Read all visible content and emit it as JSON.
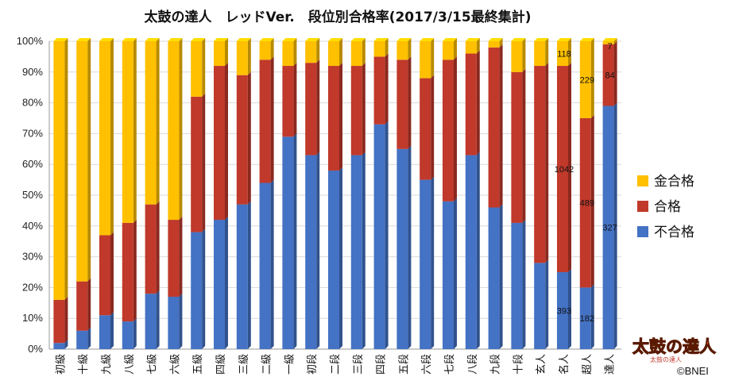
{
  "colors": {
    "gold": "#FFC000",
    "pass": "#C0392B",
    "fail": "#4472C4"
  },
  "chart_data": {
    "type": "bar",
    "stacked": true,
    "title": "太鼓の達人　レッドVer.　段位別合格率(2017/3/15最終集計)",
    "categories": [
      "初級",
      "十級",
      "九級",
      "八級",
      "七級",
      "六級",
      "五級",
      "四級",
      "三級",
      "二級",
      "一級",
      "初段",
      "二段",
      "三段",
      "四段",
      "五段",
      "六段",
      "七段",
      "八段",
      "九段",
      "十段",
      "玄人",
      "名人",
      "超人",
      "達人"
    ],
    "series": [
      {
        "name": "不合格",
        "color": "#4472C4",
        "values": [
          2,
          6,
          11,
          9,
          18,
          17,
          38,
          42,
          47,
          54,
          69,
          63,
          58,
          63,
          73,
          65,
          55,
          48,
          63,
          46,
          41,
          28,
          25,
          20,
          79
        ]
      },
      {
        "name": "合格",
        "color": "#C0392B",
        "values": [
          14,
          16,
          26,
          32,
          29,
          25,
          44,
          50,
          42,
          40,
          23,
          30,
          34,
          29,
          22,
          29,
          33,
          46,
          33,
          52,
          49,
          64,
          67,
          55,
          20
        ]
      },
      {
        "name": "金合格",
        "color": "#FFC000",
        "values": [
          84,
          78,
          63,
          59,
          53,
          58,
          18,
          8,
          11,
          6,
          8,
          7,
          8,
          8,
          5,
          6,
          12,
          6,
          4,
          2,
          10,
          8,
          8,
          25,
          1
        ]
      }
    ],
    "data_labels": [
      {
        "category": "名人",
        "series": "不合格",
        "text": "393"
      },
      {
        "category": "名人",
        "series": "合格",
        "text": "1042"
      },
      {
        "category": "名人",
        "series": "金合格",
        "text": "118"
      },
      {
        "category": "超人",
        "series": "不合格",
        "text": "182"
      },
      {
        "category": "超人",
        "series": "合格",
        "text": "489"
      },
      {
        "category": "超人",
        "series": "金合格",
        "text": "229"
      },
      {
        "category": "達人",
        "series": "不合格",
        "text": "327"
      },
      {
        "category": "達人",
        "series": "合格",
        "text": "84"
      },
      {
        "category": "達人",
        "series": "金合格",
        "text": "7"
      }
    ],
    "ylim": [
      0,
      100
    ],
    "yticks": [
      "0%",
      "10%",
      "20%",
      "30%",
      "40%",
      "50%",
      "60%",
      "70%",
      "80%",
      "90%",
      "100%"
    ],
    "grid": true,
    "legend_position": "right",
    "legend": [
      "金合格",
      "合格",
      "不合格"
    ]
  },
  "logo": {
    "text": "太鼓の達人",
    "subtext": "太鼓の達人"
  },
  "credit": "©BNEI"
}
